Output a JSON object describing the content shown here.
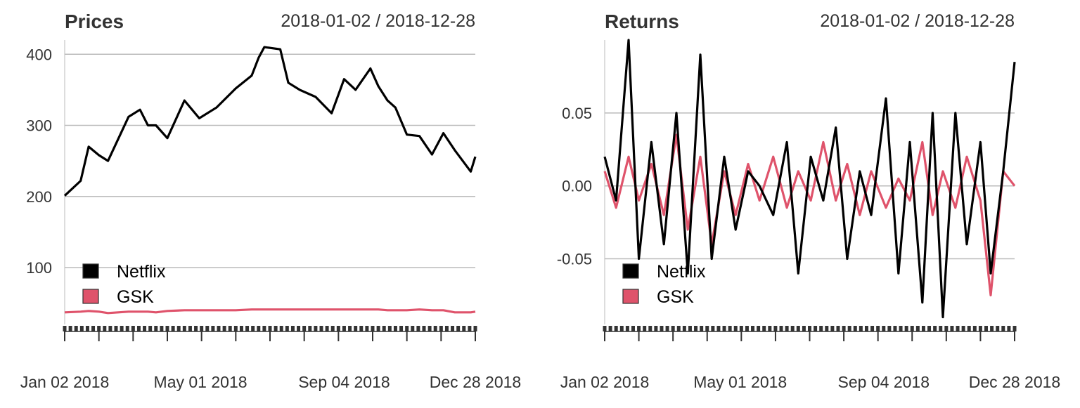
{
  "chart_data": [
    {
      "type": "line",
      "title": "Prices",
      "date_range": "2018-01-02 / 2018-12-28",
      "xlabel": "",
      "ylabel": "",
      "x_tick_labels": [
        "Jan 02 2018",
        "May 01 2018",
        "Sep 04 2018",
        "Dec 28 2018"
      ],
      "y_ticks": [
        100,
        200,
        300,
        400
      ],
      "y_tick_labels": [
        "100",
        "200",
        "300",
        "400"
      ],
      "ylim": [
        20,
        420
      ],
      "grid": true,
      "legend_position": "bottom-left",
      "x": [
        "2018-01-02",
        "2018-01-16",
        "2018-01-23",
        "2018-02-01",
        "2018-02-09",
        "2018-02-27",
        "2018-03-09",
        "2018-03-16",
        "2018-03-23",
        "2018-04-02",
        "2018-04-17",
        "2018-04-30",
        "2018-05-15",
        "2018-06-01",
        "2018-06-15",
        "2018-06-21",
        "2018-06-26",
        "2018-07-10",
        "2018-07-17",
        "2018-07-27",
        "2018-08-10",
        "2018-08-24",
        "2018-09-04",
        "2018-09-14",
        "2018-09-27",
        "2018-10-04",
        "2018-10-12",
        "2018-10-19",
        "2018-10-29",
        "2018-11-09",
        "2018-11-20",
        "2018-11-30",
        "2018-12-10",
        "2018-12-24",
        "2018-12-28"
      ],
      "series": [
        {
          "name": "Netflix",
          "color": "#000000",
          "values": [
            201,
            222,
            270,
            258,
            250,
            312,
            322,
            300,
            300,
            282,
            335,
            310,
            325,
            352,
            370,
            395,
            410,
            407,
            360,
            350,
            340,
            317,
            365,
            350,
            380,
            355,
            335,
            325,
            287,
            285,
            259,
            289,
            265,
            235,
            256
          ]
        },
        {
          "name": "GSK",
          "color": "#df536b",
          "values": [
            37,
            38,
            39,
            38,
            36,
            38,
            38,
            38,
            37,
            39,
            40,
            40,
            40,
            40,
            41,
            41,
            41,
            41,
            41,
            41,
            41,
            41,
            41,
            41,
            41,
            41,
            40,
            40,
            40,
            41,
            40,
            40,
            37,
            37,
            38
          ]
        }
      ]
    },
    {
      "type": "line",
      "title": "Returns",
      "date_range": "2018-01-02 / 2018-12-28",
      "xlabel": "",
      "ylabel": "",
      "x_tick_labels": [
        "Jan 02 2018",
        "May 01 2018",
        "Sep 04 2018",
        "Dec 28 2018"
      ],
      "y_ticks": [
        -0.05,
        0.0,
        0.05
      ],
      "y_tick_labels": [
        "-0.05",
        "0.00",
        "0.05"
      ],
      "ylim": [
        -0.095,
        0.1
      ],
      "grid": true,
      "legend_position": "bottom-left",
      "x": [
        "2018-01-02",
        "2018-01-12",
        "2018-01-23",
        "2018-02-01",
        "2018-02-12",
        "2018-02-23",
        "2018-03-06",
        "2018-03-16",
        "2018-03-27",
        "2018-04-06",
        "2018-04-17",
        "2018-04-27",
        "2018-05-08",
        "2018-05-18",
        "2018-05-30",
        "2018-06-11",
        "2018-06-21",
        "2018-07-02",
        "2018-07-13",
        "2018-07-24",
        "2018-08-03",
        "2018-08-14",
        "2018-08-24",
        "2018-09-06",
        "2018-09-17",
        "2018-09-27",
        "2018-10-08",
        "2018-10-17",
        "2018-10-26",
        "2018-11-06",
        "2018-11-16",
        "2018-11-28",
        "2018-12-07",
        "2018-12-18",
        "2018-12-28"
      ],
      "series": [
        {
          "name": "Netflix",
          "color": "#000000",
          "values": [
            0.02,
            -0.01,
            0.1,
            -0.05,
            0.03,
            -0.04,
            0.05,
            -0.06,
            0.09,
            -0.05,
            0.02,
            -0.03,
            0.01,
            0.0,
            -0.02,
            0.03,
            -0.06,
            0.02,
            -0.01,
            0.04,
            -0.05,
            0.01,
            -0.02,
            0.06,
            -0.06,
            0.03,
            -0.08,
            0.05,
            -0.09,
            0.05,
            -0.04,
            0.03,
            -0.06,
            0.01,
            0.085
          ]
        },
        {
          "name": "GSK",
          "color": "#df536b",
          "values": [
            0.01,
            -0.015,
            0.02,
            -0.01,
            0.015,
            -0.02,
            0.035,
            -0.03,
            0.02,
            -0.04,
            0.01,
            -0.02,
            0.015,
            -0.01,
            0.02,
            -0.015,
            0.01,
            -0.01,
            0.03,
            -0.01,
            0.015,
            -0.02,
            0.01,
            -0.015,
            0.005,
            -0.01,
            0.03,
            -0.02,
            0.01,
            -0.015,
            0.02,
            -0.01,
            -0.075,
            0.01,
            0.0
          ]
        }
      ]
    }
  ]
}
